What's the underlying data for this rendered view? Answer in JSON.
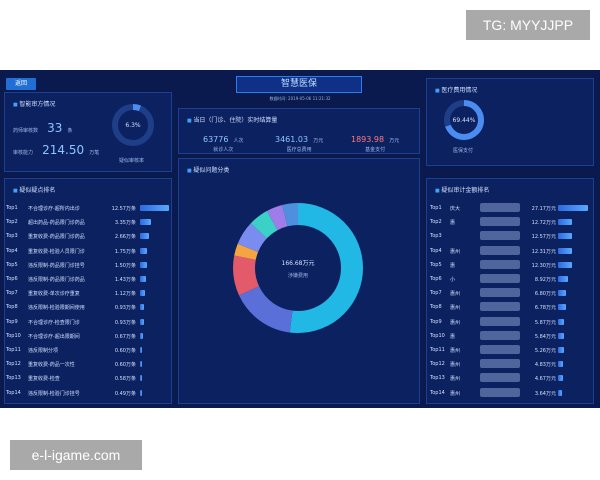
{
  "watermark_top": "TG: MYYJJPP",
  "watermark_bottom": "e-l-igame.com",
  "header": {
    "back": "返回",
    "title": "智慧医保",
    "subtitle": "数据时间: 2019-05-06 11:21:32"
  },
  "audit": {
    "title": "智能审方情况",
    "count_label": "药师审核数",
    "count": "33",
    "count_unit": "条",
    "amount_label": "审核能力",
    "amount": "214.50",
    "amount_unit": "万笔",
    "gauge_value": "6.3%",
    "gauge_label": "疑似审核率",
    "gauge_fraction": 0.063
  },
  "settlement": {
    "title": "当日（门诊、住院）实时结算量",
    "items": [
      {
        "value": "63776",
        "unit": "人次",
        "label": "就诊人次"
      },
      {
        "value": "3461.03",
        "unit": "万元",
        "label": "医疗总费用"
      },
      {
        "value": "1893.98",
        "unit": "万元",
        "label": "基金支付"
      }
    ]
  },
  "medical_cost": {
    "title": "医疗费用情况",
    "gauge_value": "69.44%",
    "gauge_label": "医保支付",
    "gauge_fraction": 0.6944
  },
  "left_rank": {
    "title": "疑似疑点排名",
    "rows": [
      {
        "rank": "Top1",
        "name": "不合理诊疗-超所内出诊",
        "value": "12.57万条",
        "level": 0.95
      },
      {
        "rank": "Top2",
        "name": "超出药品-药品限门诊药品",
        "value": "3.35万条",
        "level": 0.36
      },
      {
        "rank": "Top3",
        "name": "重复收费-药品限门诊药品",
        "value": "2.66万条",
        "level": 0.3
      },
      {
        "rank": "Top4",
        "name": "重复收费-检验人员限门诊",
        "value": "1.75万条",
        "level": 0.24
      },
      {
        "rank": "Top5",
        "name": "违反限制-药品限门诊挂号",
        "value": "1.50万条",
        "level": 0.22
      },
      {
        "rank": "Top6",
        "name": "违反限制-药品限门诊药品",
        "value": "1.43万条",
        "level": 0.2
      },
      {
        "rank": "Top7",
        "name": "重复收费-单次诊疗重复",
        "value": "1.12万条",
        "level": 0.16
      },
      {
        "rank": "Top8",
        "name": "违反限制-检验限期间使用",
        "value": "0.93万条",
        "level": 0.12
      },
      {
        "rank": "Top9",
        "name": "不合理诊疗-检查限门诊",
        "value": "0.93万条",
        "level": 0.12
      },
      {
        "rank": "Top10",
        "name": "不合理诊疗-超出限期间",
        "value": "0.67万条",
        "level": 0.09
      },
      {
        "rank": "Top11",
        "name": "违反限制分项",
        "value": "0.60万条",
        "level": 0.08
      },
      {
        "rank": "Top12",
        "name": "重复收费-药品一次性",
        "value": "0.60万条",
        "level": 0.08
      },
      {
        "rank": "Top13",
        "name": "重复收费-检查",
        "value": "0.58万条",
        "level": 0.07
      },
      {
        "rank": "Top14",
        "name": "违反限制-检验门诊挂号",
        "value": "0.49万条",
        "level": 0.06
      }
    ]
  },
  "center": {
    "title": "疑似问题分类",
    "donut_value": "166.68万元",
    "donut_label": "涉嫌费用"
  },
  "right_rank": {
    "title": "疑似审计金额排名",
    "rows": [
      {
        "rank": "Top1",
        "name": "庆大",
        "value": "27.17万元",
        "level": 0.95
      },
      {
        "rank": "Top2",
        "name": "惠",
        "value": "12.72万元",
        "level": 0.45
      },
      {
        "rank": "Top3",
        "name": "",
        "value": "12.57万元",
        "level": 0.44
      },
      {
        "rank": "Top4",
        "name": "惠州",
        "value": "12.31万元",
        "level": 0.43
      },
      {
        "rank": "Top5",
        "name": "惠",
        "value": "12.30万元",
        "level": 0.43
      },
      {
        "rank": "Top6",
        "name": "小",
        "value": "8.92万元",
        "level": 0.31
      },
      {
        "rank": "Top7",
        "name": "惠州",
        "value": "6.80万元",
        "level": 0.24
      },
      {
        "rank": "Top8",
        "name": "惠州",
        "value": "6.78万元",
        "level": 0.24
      },
      {
        "rank": "Top9",
        "name": "惠州",
        "value": "5.87万元",
        "level": 0.2
      },
      {
        "rank": "Top10",
        "name": "惠",
        "value": "5.84万元",
        "level": 0.2
      },
      {
        "rank": "Top11",
        "name": "惠州",
        "value": "5.26万元",
        "level": 0.18
      },
      {
        "rank": "Top12",
        "name": "惠州",
        "value": "4.83万元",
        "level": 0.17
      },
      {
        "rank": "Top13",
        "name": "惠州",
        "value": "4.67万元",
        "level": 0.16
      },
      {
        "rank": "Top14",
        "name": "惠州",
        "value": "3.64万元",
        "level": 0.13
      }
    ]
  },
  "colors": {
    "accent": "#2f7de8",
    "donut": [
      "#22b8e6",
      "#5b6fd8",
      "#e35a6b",
      "#f2a540",
      "#7b8cf0",
      "#3bd1c7",
      "#9f7de8",
      "#4f8fe0"
    ]
  }
}
